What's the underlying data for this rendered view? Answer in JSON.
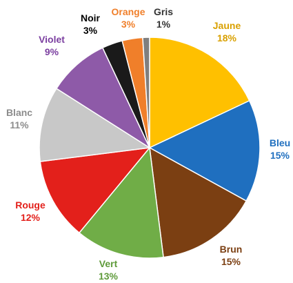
{
  "chart_data": {
    "type": "pie",
    "title": "",
    "slices": [
      {
        "label": "Jaune",
        "value": 18,
        "percent": "18%",
        "color": "#FFC000",
        "label_color": "#D9A000"
      },
      {
        "label": "Bleu",
        "value": 15,
        "percent": "15%",
        "color": "#1F6FBF",
        "label_color": "#1F6FBF"
      },
      {
        "label": "Brun",
        "value": 15,
        "percent": "15%",
        "color": "#7B3F12",
        "label_color": "#7B3F12"
      },
      {
        "label": "Vert",
        "value": 13,
        "percent": "13%",
        "color": "#70AD47",
        "label_color": "#5E9A3A"
      },
      {
        "label": "Rouge",
        "value": 12,
        "percent": "12%",
        "color": "#E3201B",
        "label_color": "#E3201B"
      },
      {
        "label": "Blanc",
        "value": 11,
        "percent": "11%",
        "color": "#C8C8C8",
        "label_color": "#8C8C8C"
      },
      {
        "label": "Violet",
        "value": 9,
        "percent": "9%",
        "color": "#8E5AA8",
        "label_color": "#7B3FA0"
      },
      {
        "label": "Noir",
        "value": 3,
        "percent": "3%",
        "color": "#1A1A1A",
        "label_color": "#000000"
      },
      {
        "label": "Orange",
        "value": 3,
        "percent": "3%",
        "color": "#F07F2A",
        "label_color": "#F07F2A"
      },
      {
        "label": "Gris",
        "value": 1,
        "percent": "1%",
        "color": "#7F7F7F",
        "label_color": "#333333"
      }
    ],
    "legend": "none",
    "data_labels": "outside"
  }
}
